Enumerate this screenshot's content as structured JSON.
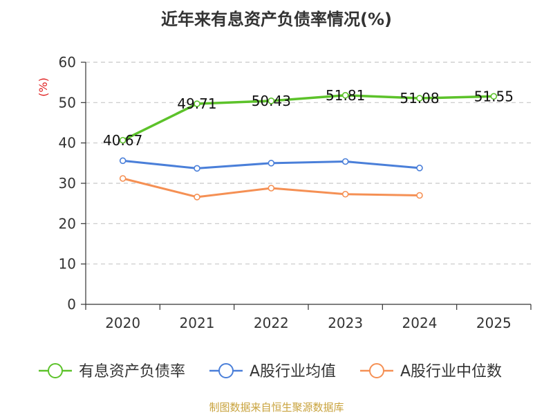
{
  "chart_data": {
    "type": "line",
    "title": "近年来有息资产负债率情况(%)",
    "ylabel": "(%)",
    "xlabel": "",
    "categories": [
      "2020",
      "2021",
      "2022",
      "2023",
      "2024",
      "2025"
    ],
    "ylim": [
      0,
      60
    ],
    "yticks": [
      0,
      10,
      20,
      30,
      40,
      50,
      60
    ],
    "grid": true,
    "legend_position": "bottom",
    "series": [
      {
        "name": "有息资产负债率",
        "color": "#5cc22a",
        "values": [
          40.67,
          49.71,
          50.43,
          51.81,
          51.08,
          51.55
        ],
        "labels": [
          "40.67",
          "49.71",
          "50.43",
          "51.81",
          "51.08",
          "51.55"
        ]
      },
      {
        "name": "A股行业均值",
        "color": "#4a7fd9",
        "values": [
          35.6,
          33.7,
          35.0,
          35.4,
          33.8,
          null
        ]
      },
      {
        "name": "A股行业中位数",
        "color": "#f59054",
        "values": [
          31.2,
          26.6,
          28.8,
          27.3,
          27.0,
          null
        ]
      }
    ]
  },
  "source": "制图数据来自恒生聚源数据库"
}
